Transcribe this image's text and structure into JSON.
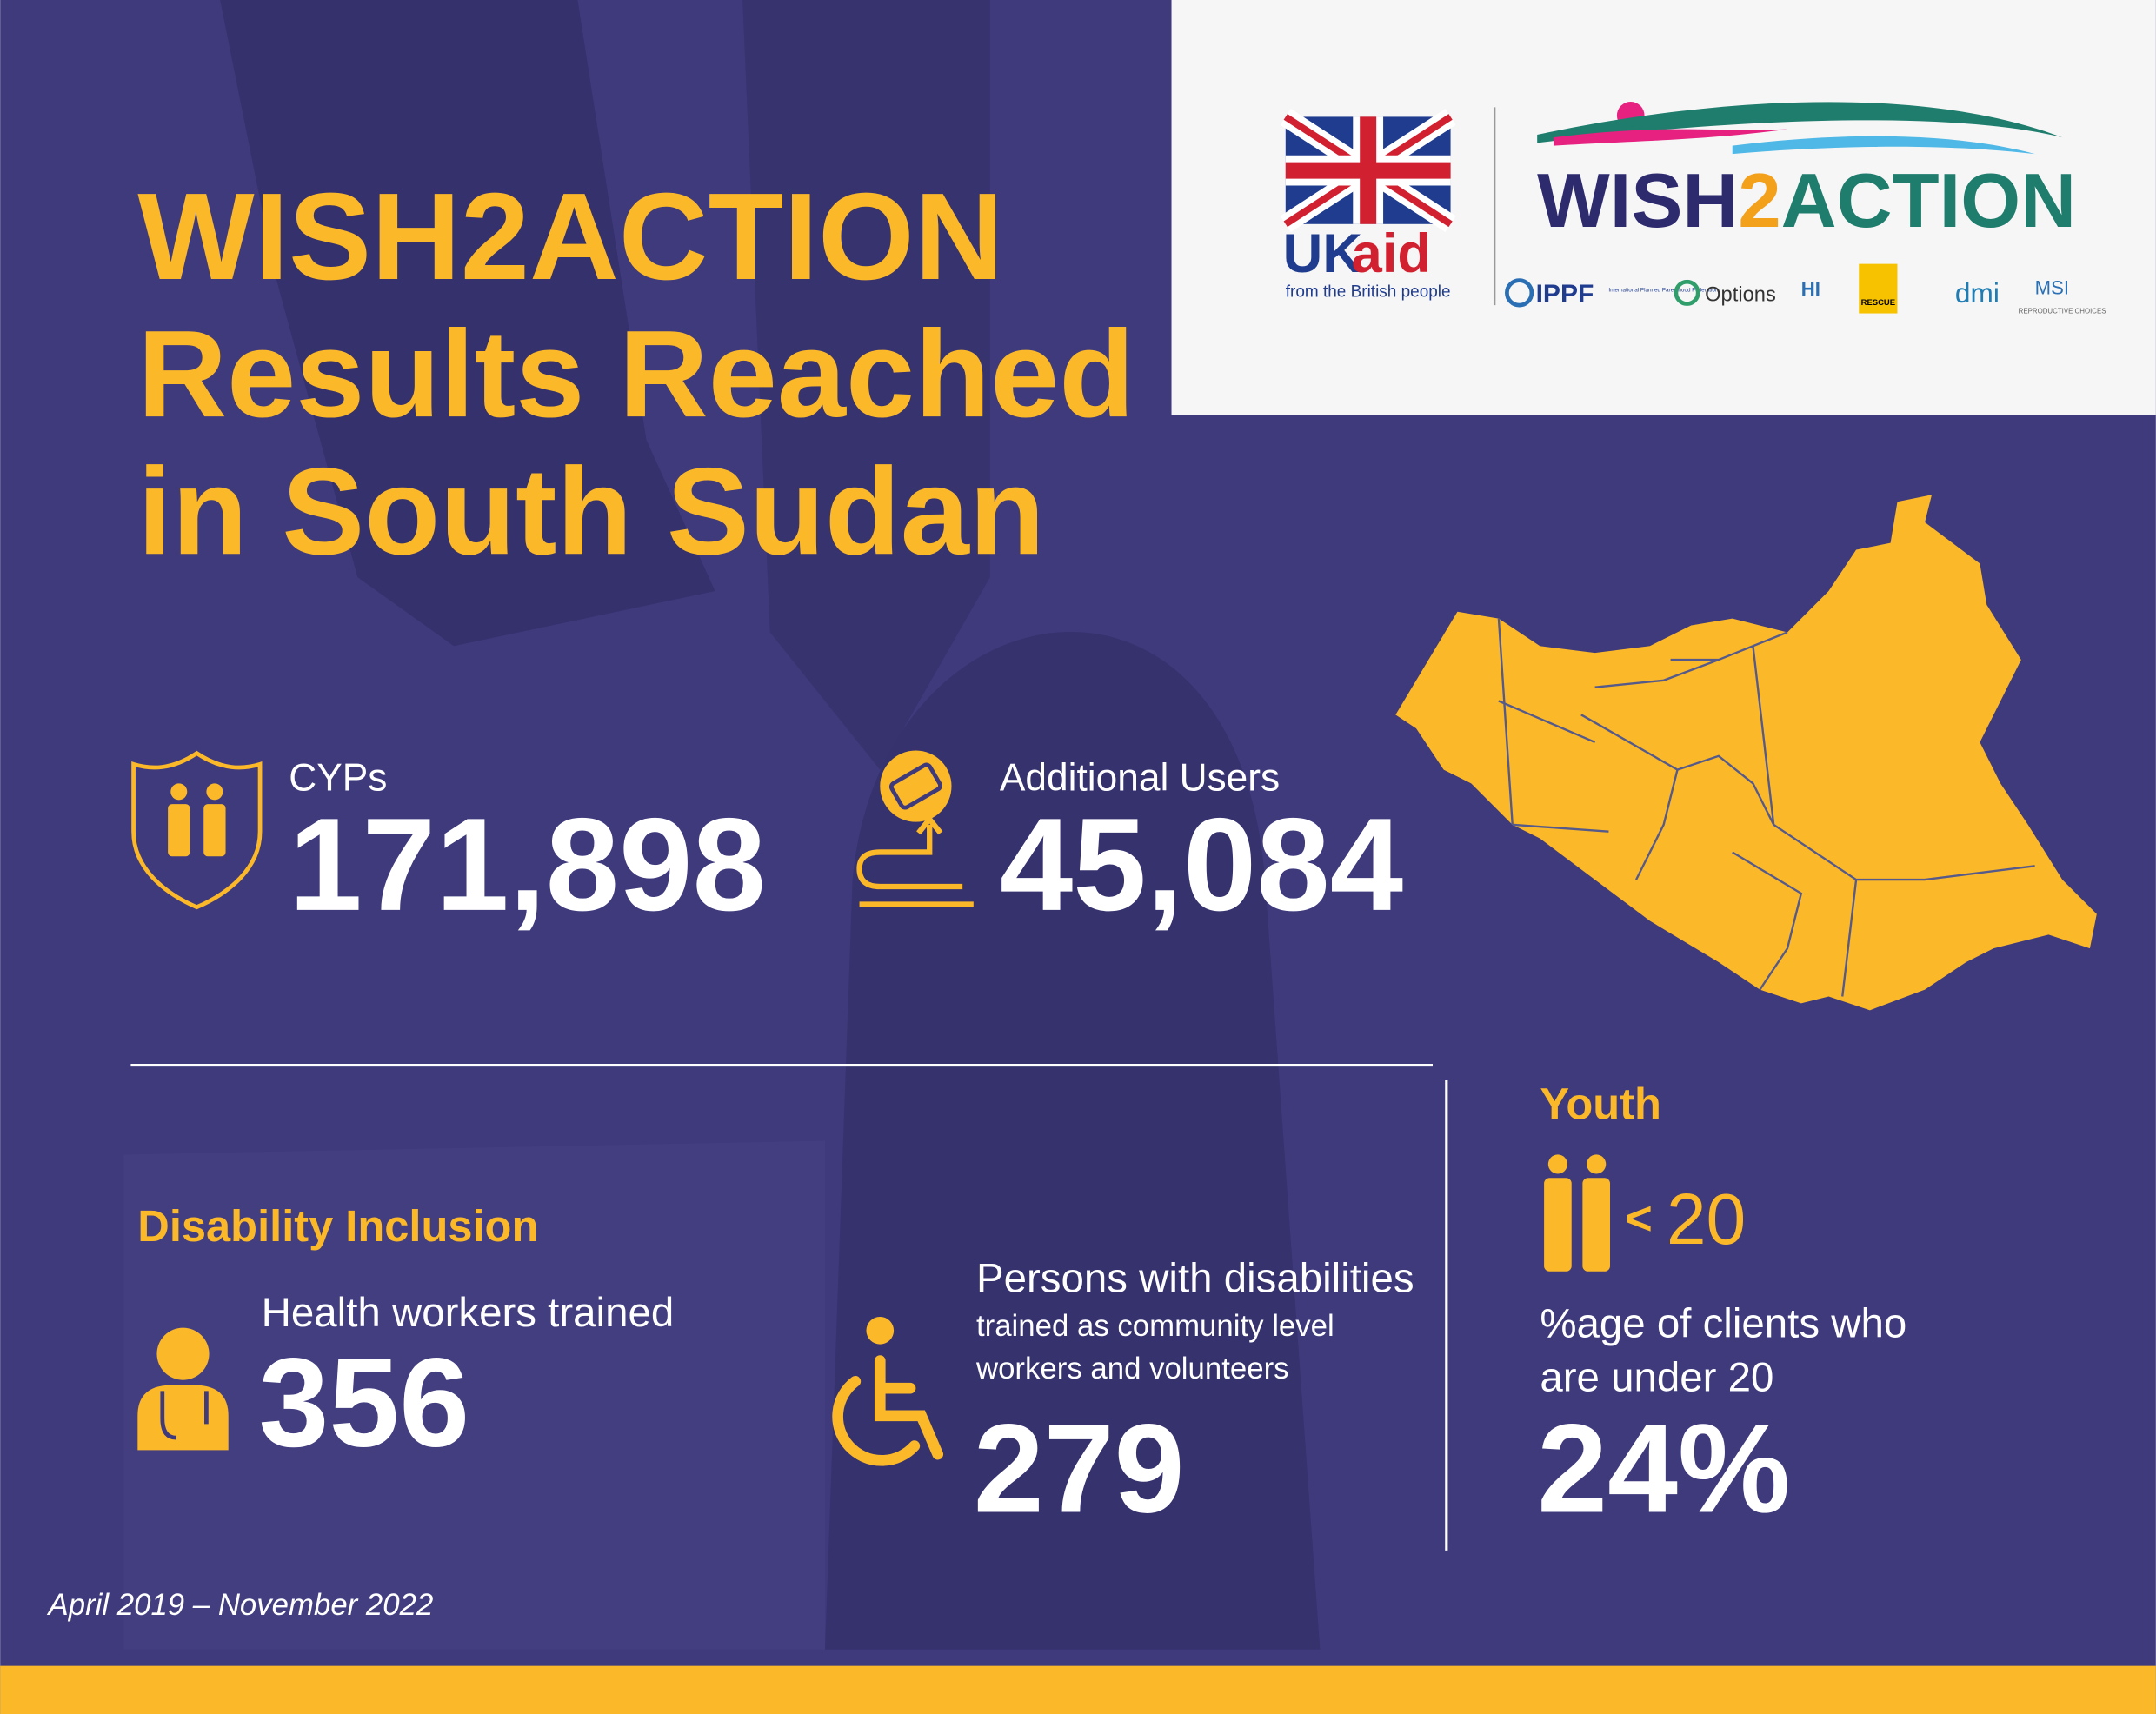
{
  "header": {
    "title_lines": [
      "WISH2ACTION",
      "Results Reached",
      "in South Sudan"
    ]
  },
  "logos": {
    "ukaid": {
      "uk": "UK",
      "aid": "aid",
      "tagline": "from the British people"
    },
    "wish2action": {
      "part1": "WISH",
      "part2": "2",
      "part3": "ACTION"
    },
    "partners": [
      {
        "name": "IPPF",
        "sub": "International Planned Parenthood Federation"
      },
      {
        "name": "Options"
      },
      {
        "name": "HI"
      },
      {
        "name": "RESCUE"
      },
      {
        "name": "dmi"
      },
      {
        "name": "MSI",
        "sub": "REPRODUCTIVE CHOICES"
      }
    ]
  },
  "stats": {
    "cyps": {
      "label": "CYPs",
      "value": "171,898"
    },
    "additional_users": {
      "label": "Additional Users",
      "value": "45,084"
    }
  },
  "disability": {
    "heading": "Disability Inclusion",
    "health_workers": {
      "label": "Health workers trained",
      "value": "356"
    },
    "persons": {
      "label": "Persons with disabilities",
      "sub_lines": [
        "trained as community level",
        "workers and volunteers"
      ],
      "value": "279"
    }
  },
  "youth": {
    "heading": "Youth",
    "less_than": "<",
    "age": "20",
    "label_lines": [
      "%age of clients who",
      "are under 20"
    ],
    "value": "24%"
  },
  "footer": {
    "period": "April 2019 – November 2022"
  }
}
